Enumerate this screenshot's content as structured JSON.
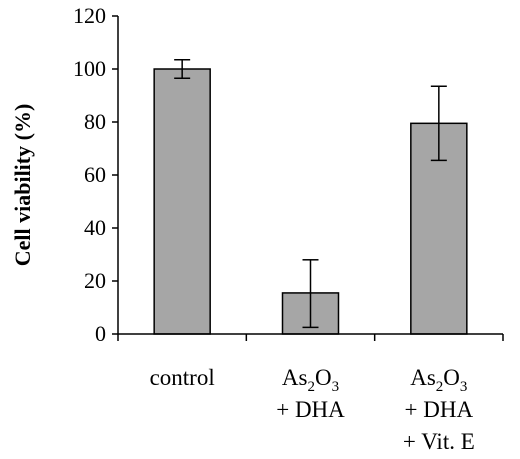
{
  "chart_data": {
    "type": "bar",
    "ylabel": "Cell viability (%)",
    "xlabel": "",
    "ylim": [
      0,
      120
    ],
    "yticks": [
      "0",
      "20",
      "40",
      "60",
      "80",
      "100",
      "120"
    ],
    "grid": false,
    "categories": [
      {
        "lines": [
          {
            "text": "control"
          }
        ]
      },
      {
        "lines": [
          {
            "text": "As",
            "sub": "2",
            "text2": "O",
            "sub2": "3"
          },
          {
            "text": "+ DHA"
          }
        ]
      },
      {
        "lines": [
          {
            "text": "As",
            "sub": "2",
            "text2": "O",
            "sub2": "3"
          },
          {
            "text": "+ DHA"
          },
          {
            "text": "+ Vit. E"
          }
        ]
      }
    ],
    "values": [
      100,
      15.5,
      79.5
    ],
    "errors": [
      {
        "low": 96.5,
        "high": 103.5
      },
      {
        "low": 2.5,
        "high": 28
      },
      {
        "low": 65.5,
        "high": 93.5
      }
    ],
    "bar_color": "#a6a6a6"
  }
}
